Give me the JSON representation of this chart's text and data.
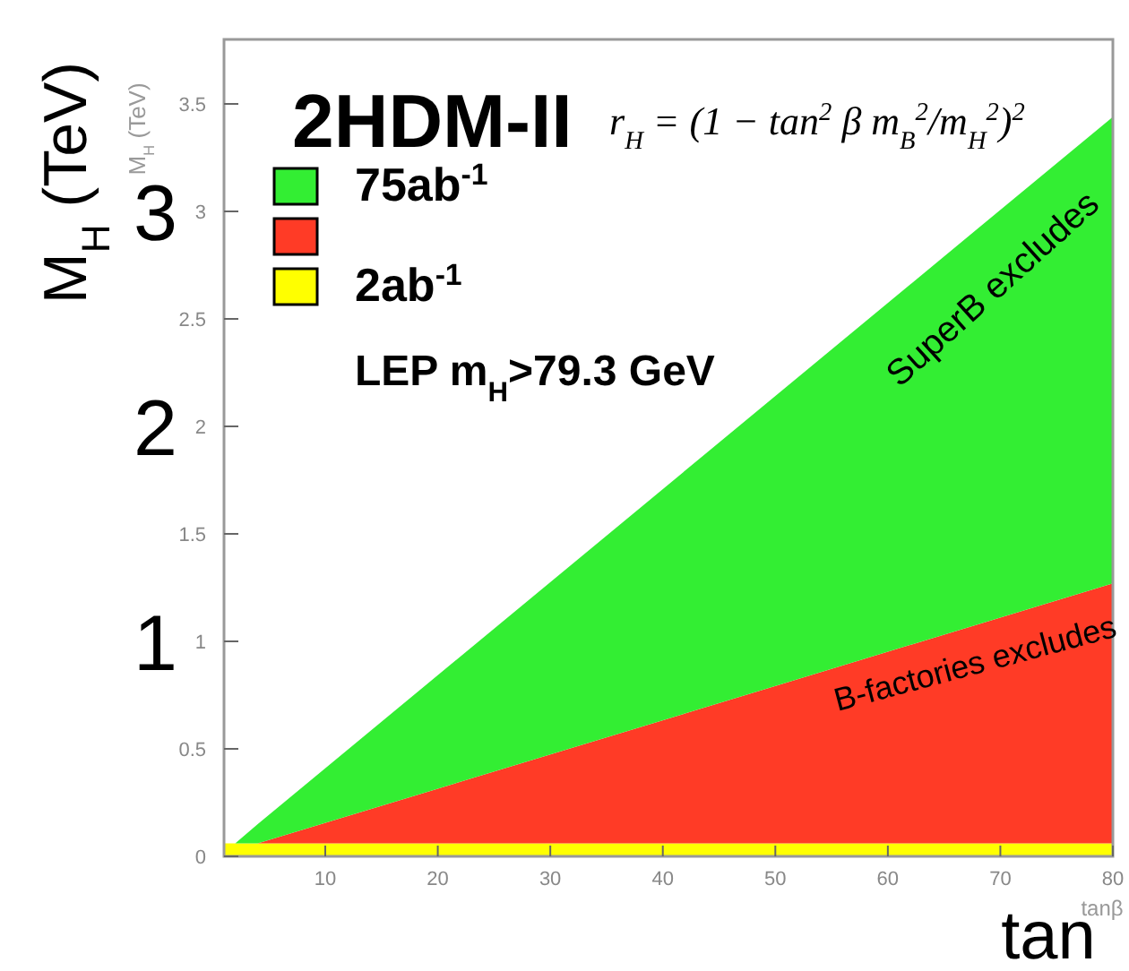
{
  "chart_data": {
    "type": "area",
    "title": "2HDM-II",
    "stacked": true,
    "xlabel": "tanβ",
    "ylabel": "M$_{H}$ (TeV)",
    "x": [
      1,
      2,
      4,
      80
    ],
    "xlim": [
      1,
      80
    ],
    "xticks": [
      10,
      20,
      30,
      40,
      50,
      60,
      70,
      80
    ],
    "ylim": [
      0,
      3.8
    ],
    "yticks": [
      1,
      2,
      3
    ],
    "y2lim": [
      0,
      3.8
    ],
    "y2ticks": [
      0,
      0.5,
      1,
      1.5,
      2,
      2.5,
      3,
      3.5
    ],
    "legend": "top left",
    "series": [
      {
        "name": "2ab$^{-1}$",
        "color": "#ffff00",
        "values": [
          0.06,
          0.06,
          0.06,
          0.06
        ]
      },
      {
        "color": "#ff3b26",
        "values": [
          0,
          0,
          0,
          1.21
        ]
      },
      {
        "name": "75ab$^{-1}$",
        "color": "#33ee33",
        "values": [
          0,
          0,
          0.09,
          2.17
        ]
      }
    ],
    "annotations": [
      "r$_{H}$ = (1 − tan$^{2}$ β m$_{B}$$^{2}$/m$_{H}$$^{2}$)$^{2}$",
      "LEP m$_{H}$>79.3 GeV",
      "SuperB excludes",
      "B-factories excludes",
      "tan",
      "M$_{H}$ (TeV)"
    ]
  }
}
